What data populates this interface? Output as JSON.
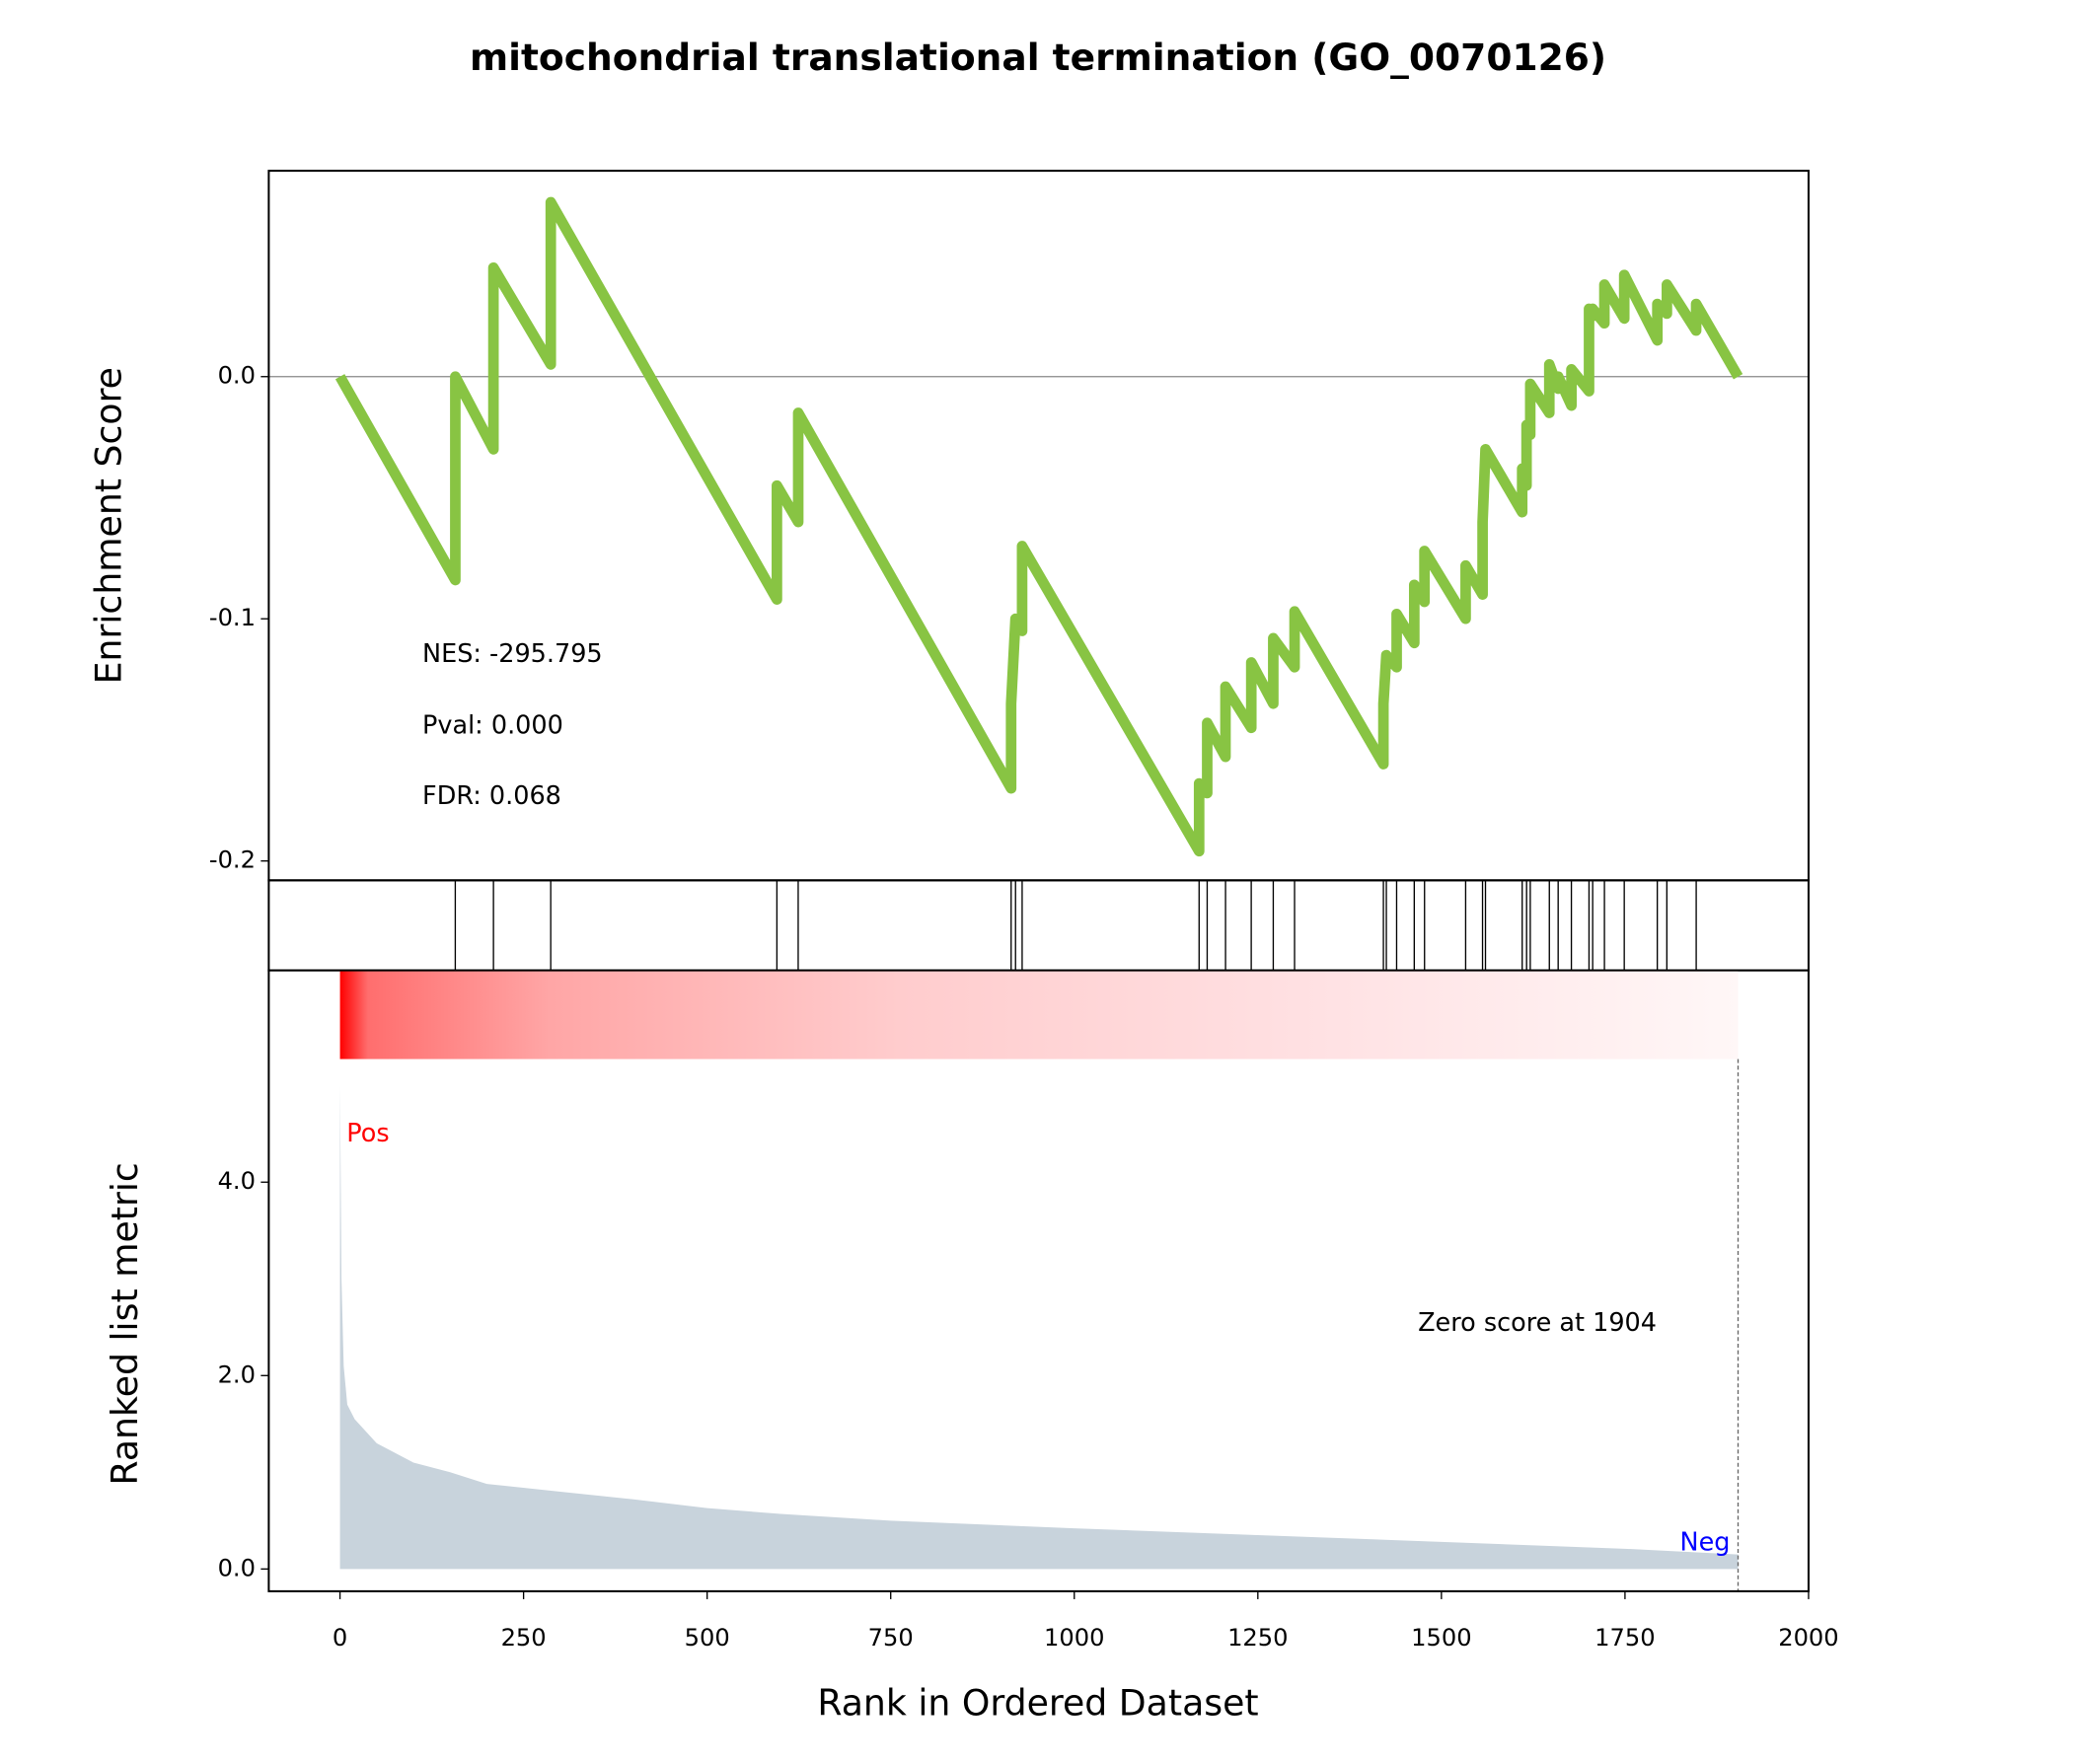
{
  "chart_data": [
    {
      "type": "line",
      "title": "mitochondrial translational termination (GO_0070126)",
      "ylabel": "Enrichment Score",
      "color": "#88c443",
      "annotations": [
        "NES: -295.795",
        "Pval: 0.000",
        "FDR: 0.068"
      ],
      "x": [
        0,
        157,
        157,
        209,
        209,
        287,
        287,
        595,
        595,
        624,
        624,
        914,
        914,
        920,
        929,
        929,
        1170,
        1170,
        1181,
        1181,
        1206,
        1206,
        1241,
        1241,
        1271,
        1271,
        1300,
        1300,
        1421,
        1421,
        1425,
        1439,
        1439,
        1463,
        1463,
        1477,
        1477,
        1533,
        1533,
        1556,
        1556,
        1560,
        1610,
        1610,
        1616,
        1616,
        1621,
        1621,
        1647,
        1647,
        1659,
        1659,
        1677,
        1677,
        1701,
        1701,
        1706,
        1706,
        1722,
        1722,
        1749,
        1749,
        1794,
        1794,
        1807,
        1807,
        1847,
        1847,
        1904
      ],
      "values": [
        0,
        -0.084,
        0.0,
        -0.03,
        0.045,
        0.005,
        0.072,
        -0.092,
        -0.045,
        -0.06,
        -0.015,
        -0.17,
        -0.135,
        -0.1,
        -0.105,
        -0.07,
        -0.196,
        -0.168,
        -0.172,
        -0.143,
        -0.157,
        -0.128,
        -0.145,
        -0.118,
        -0.135,
        -0.108,
        -0.12,
        -0.097,
        -0.16,
        -0.135,
        -0.115,
        -0.12,
        -0.098,
        -0.11,
        -0.086,
        -0.093,
        -0.072,
        -0.1,
        -0.078,
        -0.09,
        -0.06,
        -0.03,
        -0.056,
        -0.038,
        -0.045,
        -0.02,
        -0.024,
        -0.003,
        -0.015,
        0.005,
        -0.005,
        0.0,
        -0.012,
        0.003,
        -0.006,
        0.028,
        0.025,
        0.028,
        0.022,
        0.038,
        0.024,
        0.042,
        0.015,
        0.03,
        0.026,
        0.038,
        0.019,
        0.03,
        0.0
      ],
      "xlim": [
        -97,
        2000
      ],
      "ylim": [
        -0.208,
        0.085
      ],
      "yticks": [
        {
          "value": 0,
          "label": "0.0"
        },
        -0.1,
        -0.2
      ]
    },
    {
      "type": "rug",
      "color": "#000000",
      "hits": [
        157,
        209,
        287,
        595,
        624,
        914,
        920,
        929,
        1170,
        1181,
        1206,
        1241,
        1271,
        1300,
        1421,
        1425,
        1439,
        1463,
        1477,
        1533,
        1556,
        1560,
        1610,
        1616,
        1621,
        1647,
        1659,
        1677,
        1701,
        1706,
        1722,
        1749,
        1794,
        1807,
        1847
      ],
      "xlim": [
        -97,
        2000
      ]
    },
    {
      "type": "area",
      "ylabel": "Ranked list metric",
      "xlabel": "Rank in Ordered Dataset",
      "color": "#c8d3dc",
      "x": [
        0,
        2,
        5,
        10,
        20,
        50,
        100,
        150,
        200,
        300,
        400,
        500,
        600,
        750,
        1000,
        1250,
        1500,
        1750,
        1904
      ],
      "values": [
        5.0,
        3.0,
        2.1,
        1.7,
        1.55,
        1.3,
        1.1,
        1.0,
        0.88,
        0.8,
        0.72,
        0.63,
        0.57,
        0.5,
        0.42,
        0.35,
        0.28,
        0.21,
        0.15
      ],
      "pos_label": "Pos",
      "neg_label": "Neg",
      "zero_score_rank": 1904,
      "zero_score_label": "Zero score at 1904",
      "xlim": [
        -97,
        2000
      ],
      "ylim": [
        -0.23,
        6.19
      ],
      "xticks": [
        0,
        250,
        500,
        750,
        1000,
        1250,
        1500,
        1750,
        2000
      ],
      "yticks": [
        {
          "value": 0,
          "label": "0.0"
        },
        {
          "value": 2,
          "label": "2.0"
        },
        {
          "value": 4,
          "label": "4.0"
        }
      ]
    }
  ]
}
